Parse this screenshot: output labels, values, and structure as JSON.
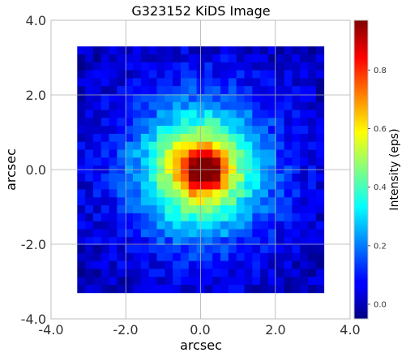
{
  "chart_data": {
    "type": "heatmap",
    "title": "G323152 KiDS Image",
    "xlabel": "arcsec",
    "ylabel": "arcsec",
    "xlim": [
      -4.0,
      4.0
    ],
    "ylim": [
      -4.0,
      4.0
    ],
    "x_ticks": [
      "-4.0",
      "-2.0",
      "0.0",
      "2.0",
      "4.0"
    ],
    "y_ticks": [
      "4.0",
      "2.0",
      "0.0",
      "-2.0",
      "-4.0"
    ],
    "image_extent": [
      -3.3,
      3.3,
      -3.3,
      3.3
    ],
    "grid_size": 31,
    "profile": {
      "peak_intensity": 0.97,
      "peak_center": [
        0.1,
        0.0
      ],
      "peak_sigma_arcsec": 0.35,
      "halo_intensity": 0.52,
      "halo_sigma_arcsec": 1.0,
      "wing_intensity": 0.18,
      "wing_sigma_arcsec": 1.9
    },
    "grid": true,
    "colorbar": {
      "label": "Intensity (eps)",
      "colormap": "jet",
      "range": [
        -0.05,
        0.97
      ],
      "ticks": [
        "0.0",
        "0.2",
        "0.4",
        "0.6",
        "0.8"
      ],
      "tick_values": [
        0.0,
        0.2,
        0.4,
        0.6,
        0.8
      ]
    }
  }
}
